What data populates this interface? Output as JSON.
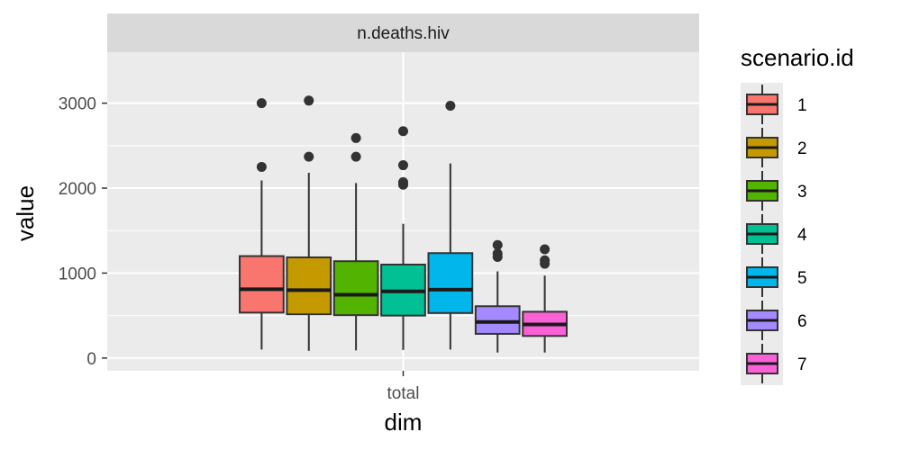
{
  "chart_data": {
    "type": "boxplot",
    "facet_label": "n.deaths.hiv",
    "xlabel": "dim",
    "ylabel": "value",
    "categories": [
      "total"
    ],
    "ylim": [
      -150,
      3600
    ],
    "y_ticks": [
      0,
      1000,
      2000,
      3000
    ],
    "y_tick_labels": [
      "0",
      "1000",
      "2000",
      "3000"
    ],
    "grid": true,
    "legend": {
      "title": "scenario.id",
      "position": "right"
    },
    "series": [
      {
        "name": "1",
        "color": "#F8766D",
        "whisker_low": 100,
        "q1": 535,
        "median": 810,
        "q3": 1200,
        "whisker_high": 2090,
        "outliers": [
          2250,
          3000
        ]
      },
      {
        "name": "2",
        "color": "#C49A00",
        "whisker_low": 85,
        "q1": 515,
        "median": 800,
        "q3": 1185,
        "whisker_high": 2180,
        "outliers": [
          2370,
          3030
        ]
      },
      {
        "name": "3",
        "color": "#53B400",
        "whisker_low": 90,
        "q1": 505,
        "median": 745,
        "q3": 1140,
        "whisker_high": 2060,
        "outliers": [
          2370,
          2590
        ]
      },
      {
        "name": "4",
        "color": "#00C094",
        "whisker_low": 95,
        "q1": 500,
        "median": 785,
        "q3": 1100,
        "whisker_high": 1580,
        "outliers": [
          2040,
          2070,
          2270,
          2670
        ]
      },
      {
        "name": "5",
        "color": "#00B6EB",
        "whisker_low": 100,
        "q1": 530,
        "median": 805,
        "q3": 1235,
        "whisker_high": 2290,
        "outliers": [
          2970
        ]
      },
      {
        "name": "6",
        "color": "#A58AFF",
        "whisker_low": 65,
        "q1": 285,
        "median": 425,
        "q3": 610,
        "whisker_high": 1020,
        "outliers": [
          1190,
          1230,
          1330
        ]
      },
      {
        "name": "7",
        "color": "#FB61D7",
        "whisker_low": 65,
        "q1": 260,
        "median": 395,
        "q3": 545,
        "whisker_high": 970,
        "outliers": [
          1110,
          1150,
          1280
        ]
      }
    ]
  }
}
